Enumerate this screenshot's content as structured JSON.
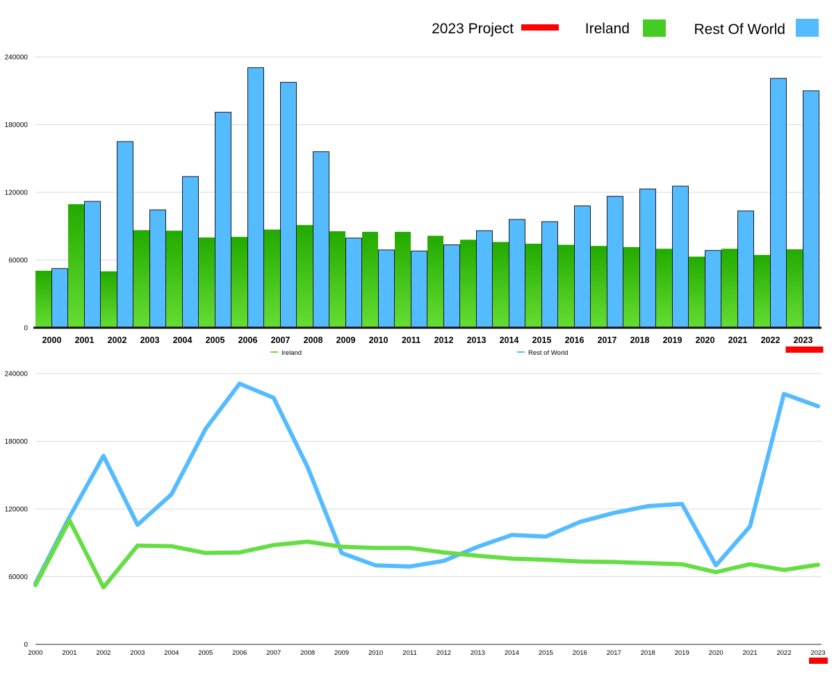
{
  "legend": {
    "projection_label": "2023 Project",
    "ireland_label": "Ireland",
    "rest_label": "Rest Of World",
    "projection_color": "#ff0000",
    "ireland_color": "#44cc22",
    "rest_color": "#55bbff"
  },
  "chart_data": [
    {
      "type": "bar",
      "title": "",
      "xlabel": "",
      "ylabel": "",
      "ylim": [
        0,
        240000
      ],
      "yticks": [
        "0",
        "60000",
        "120000",
        "180000",
        "240000"
      ],
      "grid": true,
      "legend_position": "top-right",
      "categories": [
        "2000",
        "2001",
        "2002",
        "2003",
        "2004",
        "2005",
        "2006",
        "2007",
        "2008",
        "2009",
        "2010",
        "2011",
        "2012",
        "2013",
        "2014",
        "2015",
        "2016",
        "2017",
        "2018",
        "2019",
        "2020",
        "2021",
        "2022",
        "2023"
      ],
      "series": [
        {
          "name": "Ireland",
          "color": "#44cc22",
          "values": [
            50500,
            109500,
            50000,
            86500,
            86000,
            80000,
            80500,
            87000,
            91000,
            85500,
            85000,
            85000,
            81500,
            78000,
            76000,
            74500,
            73500,
            72500,
            71500,
            70000,
            63000,
            70000,
            64500,
            69500
          ]
        },
        {
          "name": "Rest Of World",
          "color": "#55bbff",
          "values": [
            52500,
            112000,
            165000,
            104500,
            134000,
            191000,
            230500,
            217500,
            156000,
            79500,
            69000,
            68000,
            73500,
            86000,
            96000,
            94000,
            108000,
            116500,
            123000,
            125500,
            68500,
            103500,
            221000,
            210000
          ]
        }
      ],
      "annotation": {
        "label": "2023 Project",
        "category": "2023",
        "color": "#ff0000"
      }
    },
    {
      "type": "line",
      "title": "",
      "xlabel": "",
      "ylabel": "",
      "ylim": [
        0,
        240000
      ],
      "yticks": [
        "0",
        "60000",
        "120000",
        "180000",
        "240000"
      ],
      "grid": true,
      "legend_position": "top",
      "categories": [
        "2000",
        "2001",
        "2002",
        "2003",
        "2004",
        "2005",
        "2006",
        "2007",
        "2008",
        "2009",
        "2010",
        "2011",
        "2012",
        "2013",
        "2014",
        "2015",
        "2016",
        "2017",
        "2018",
        "2019",
        "2020",
        "2021",
        "2022",
        "2023"
      ],
      "series": [
        {
          "name": "Ireland",
          "color": "#66dd44",
          "values": [
            52500,
            110000,
            50500,
            87500,
            87000,
            81000,
            81500,
            88000,
            91000,
            86500,
            85500,
            85500,
            81500,
            78500,
            76000,
            75000,
            73500,
            73000,
            72000,
            71000,
            64000,
            71000,
            66000,
            70500
          ]
        },
        {
          "name": "Rest of World",
          "color": "#55bbff",
          "values": [
            54000,
            113000,
            167000,
            106000,
            133000,
            191000,
            231000,
            218500,
            157000,
            81000,
            70000,
            69000,
            74000,
            86500,
            97000,
            95500,
            108500,
            116500,
            122500,
            124500,
            70000,
            104500,
            222000,
            211000
          ]
        }
      ],
      "annotation": {
        "category": "2023",
        "color": "#ff0000"
      }
    }
  ]
}
